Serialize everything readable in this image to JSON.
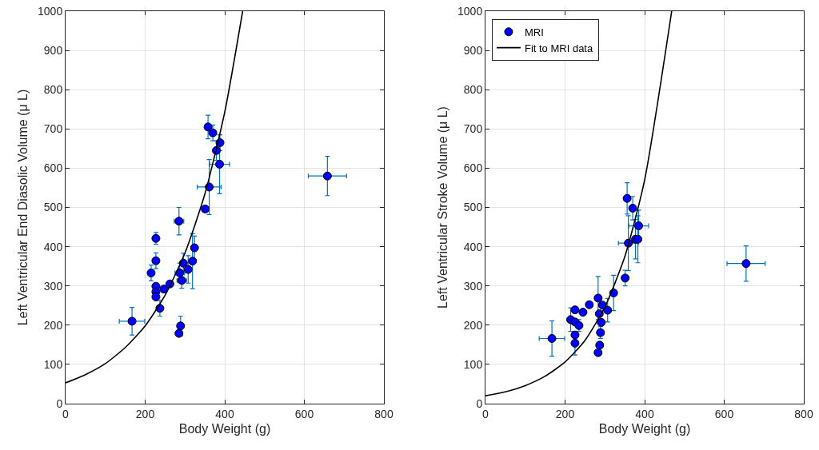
{
  "chart_data": [
    {
      "type": "scatter",
      "xlabel": "Body Weight (g)",
      "ylabel": "Left Ventricular End Diasolic Volume (μ L)",
      "xlim": [
        0,
        800
      ],
      "xticks": [
        0,
        200,
        400,
        600,
        800
      ],
      "ylim": [
        0,
        1000
      ],
      "yticks": [
        0,
        100,
        200,
        300,
        400,
        500,
        600,
        700,
        800,
        900,
        1000
      ],
      "grid": true,
      "legend": false,
      "marker": "circle",
      "series": [
        {
          "color": "#0000ff",
          "x": [
            167,
            215,
            227,
            227,
            227,
            227,
            227,
            237,
            247,
            262,
            285,
            289,
            285,
            287,
            292,
            296,
            308,
            319,
            324,
            351,
            361,
            387,
            379,
            388,
            370,
            358,
            658
          ],
          "values": [
            210,
            333,
            421,
            364,
            299,
            285,
            272,
            243,
            292,
            305,
            465,
            198,
            179,
            333,
            314,
            358,
            342,
            363,
            397,
            496,
            552,
            610,
            645,
            665,
            690,
            705,
            580
          ],
          "errors": [
            35,
            20,
            15,
            20,
            null,
            null,
            null,
            20,
            null,
            null,
            35,
            25,
            null,
            25,
            20,
            25,
            35,
            70,
            30,
            null,
            70,
            75,
            25,
            20,
            20,
            30,
            50
          ],
          "xerrors": [
            32,
            null,
            null,
            null,
            null,
            null,
            null,
            null,
            null,
            null,
            12,
            null,
            null,
            12,
            12,
            null,
            null,
            null,
            null,
            null,
            30,
            25,
            null,
            null,
            null,
            null,
            48
          ]
        },
        {
          "type": "line",
          "color": "#000000",
          "line_style": "solid",
          "marker": "none",
          "x": [
            0,
            50,
            100,
            150,
            200,
            250,
            300,
            350,
            400,
            445
          ],
          "values": [
            53,
            74,
            102,
            143,
            198,
            276,
            384,
            534,
            743,
            1000
          ]
        }
      ]
    },
    {
      "type": "scatter",
      "xlabel": "Body Weight (g)",
      "ylabel": "Left Ventricular Stroke Volume (μ L)",
      "xlim": [
        0,
        800
      ],
      "xticks": [
        0,
        200,
        400,
        600,
        800
      ],
      "ylim": [
        0,
        1000
      ],
      "yticks": [
        0,
        100,
        200,
        300,
        400,
        500,
        600,
        700,
        800,
        900,
        1000
      ],
      "grid": true,
      "legend": "top left",
      "marker": "circle",
      "series": [
        {
          "name": "MRI",
          "color": "#0000ff",
          "x": [
            167,
            214,
            225,
            225,
            225,
            225,
            235,
            245,
            261,
            283,
            294,
            286,
            291,
            289,
            287,
            283,
            307,
            322,
            351,
            359,
            377,
            383,
            385,
            370,
            356,
            655
          ],
          "values": [
            166,
            214,
            239,
            208,
            175,
            154,
            199,
            233,
            252,
            269,
            251,
            229,
            207,
            181,
            149,
            130,
            238,
            282,
            320,
            409,
            419,
            419,
            453,
            498,
            523,
            357
          ],
          "errors": [
            45,
            30,
            null,
            null,
            null,
            30,
            15,
            null,
            null,
            55,
            null,
            null,
            null,
            15,
            null,
            null,
            30,
            45,
            20,
            70,
            50,
            60,
            40,
            30,
            40,
            45
          ],
          "xerrors": [
            32,
            null,
            null,
            null,
            null,
            null,
            null,
            null,
            null,
            null,
            null,
            null,
            null,
            null,
            null,
            null,
            null,
            null,
            null,
            25,
            null,
            null,
            25,
            null,
            null,
            48
          ]
        },
        {
          "type": "line",
          "name": "Fit to MRI data",
          "color": "#000000",
          "line_style": "solid",
          "marker": "none",
          "x": [
            0,
            50,
            100,
            150,
            200,
            250,
            300,
            350,
            400,
            468
          ],
          "values": [
            20,
            30,
            46,
            70,
            106,
            161,
            246,
            374,
            570,
            1000
          ]
        }
      ]
    }
  ]
}
